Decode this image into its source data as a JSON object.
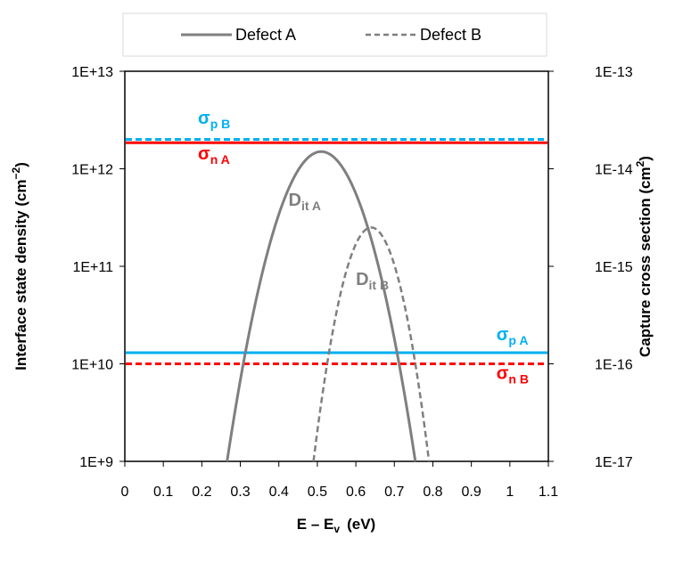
{
  "chart_data": {
    "type": "line",
    "title": "",
    "xlabel": "E – E",
    "xlabel_sub": "v",
    "xlabel_unit": "(eV)",
    "ylabel": "Interface state density (cm",
    "ylabel_sup": "−2",
    "y2label": "Capture cross section (cm",
    "y2label_sup": "2",
    "xlim": [
      0,
      1.1
    ],
    "ylim": [
      1000000000.0,
      10000000000000.0
    ],
    "y2lim": [
      1e-17,
      1e-13
    ],
    "yscale": "log",
    "grid": false,
    "legend_position": "top",
    "x_ticks": [
      0,
      0.1,
      0.2,
      0.3,
      0.4,
      0.5,
      0.6,
      0.7,
      0.8,
      0.9,
      1.0,
      1.1
    ],
    "x_tick_labels": [
      "0",
      "0.1",
      "0.2",
      "0.3",
      "0.4",
      "0.5",
      "0.6",
      "0.7",
      "0.8",
      "0.9",
      "1",
      "1.1"
    ],
    "y_ticks": [
      1000000000.0,
      10000000000.0,
      100000000000.0,
      1000000000000.0,
      10000000000000.0
    ],
    "y_tick_labels": [
      "1E+9",
      "1E+10",
      "1E+11",
      "1E+12",
      "1E+13"
    ],
    "y2_ticks": [
      1e-17,
      1e-16,
      1e-15,
      1e-14,
      1e-13
    ],
    "y2_tick_labels": [
      "1E-17",
      "1E-16",
      "1E-15",
      "1E-14",
      "1E-13"
    ],
    "legend": [
      {
        "name": "Defect A",
        "style": "solid"
      },
      {
        "name": "Defect B",
        "style": "dashed"
      }
    ],
    "series": [
      {
        "name": "Defect A",
        "axis": "left",
        "kind": "gaussian",
        "peak_x": 0.51,
        "peak_y": 1500000000000.0,
        "sigma": 0.097,
        "color": "#7f7f7f",
        "style": "solid"
      },
      {
        "name": "Defect B",
        "axis": "left",
        "kind": "gaussian",
        "peak_x": 0.64,
        "peak_y": 250000000000.0,
        "sigma": 0.0685,
        "color": "#7f7f7f",
        "style": "dashed"
      }
    ],
    "hlines": [
      {
        "id": "sigma-p-b",
        "axis": "right",
        "value": 2e-14,
        "color": "#00b0f0",
        "style": "dashed"
      },
      {
        "id": "sigma-n-a",
        "axis": "right",
        "value": 1.85e-14,
        "color": "#ff0000",
        "style": "solid"
      },
      {
        "id": "sigma-p-a",
        "axis": "right",
        "value": 1.3e-16,
        "color": "#00b0f0",
        "style": "solid"
      },
      {
        "id": "sigma-n-b",
        "axis": "right",
        "value": 1e-16,
        "color": "#ff0000",
        "style": "dashed"
      }
    ],
    "annotations": [
      {
        "id": "sigma-p-b-label",
        "main": "σ",
        "sub": "p B",
        "color": "#00b0f0",
        "x": 0.19,
        "y": 2900000000000.0
      },
      {
        "id": "sigma-n-a-label",
        "main": "σ",
        "sub": "n A",
        "color": "#ff0000",
        "x": 0.19,
        "y": 1250000000000.0
      },
      {
        "id": "dit-a-label",
        "main": "D",
        "sub": "it A",
        "color": "#7f7f7f",
        "x": 0.425,
        "y": 420000000000.0
      },
      {
        "id": "dit-b-label",
        "main": "D",
        "sub": "it B",
        "color": "#7f7f7f",
        "x": 0.6,
        "y": 64000000000.0
      },
      {
        "id": "sigma-p-a-label",
        "main": "σ",
        "sub": "p A",
        "color": "#00b0f0",
        "x": 0.965,
        "y": 17500000000.0
      },
      {
        "id": "sigma-n-b-label",
        "main": "σ",
        "sub": "n B",
        "color": "#ff0000",
        "x": 0.965,
        "y": 7000000000.0
      }
    ]
  }
}
